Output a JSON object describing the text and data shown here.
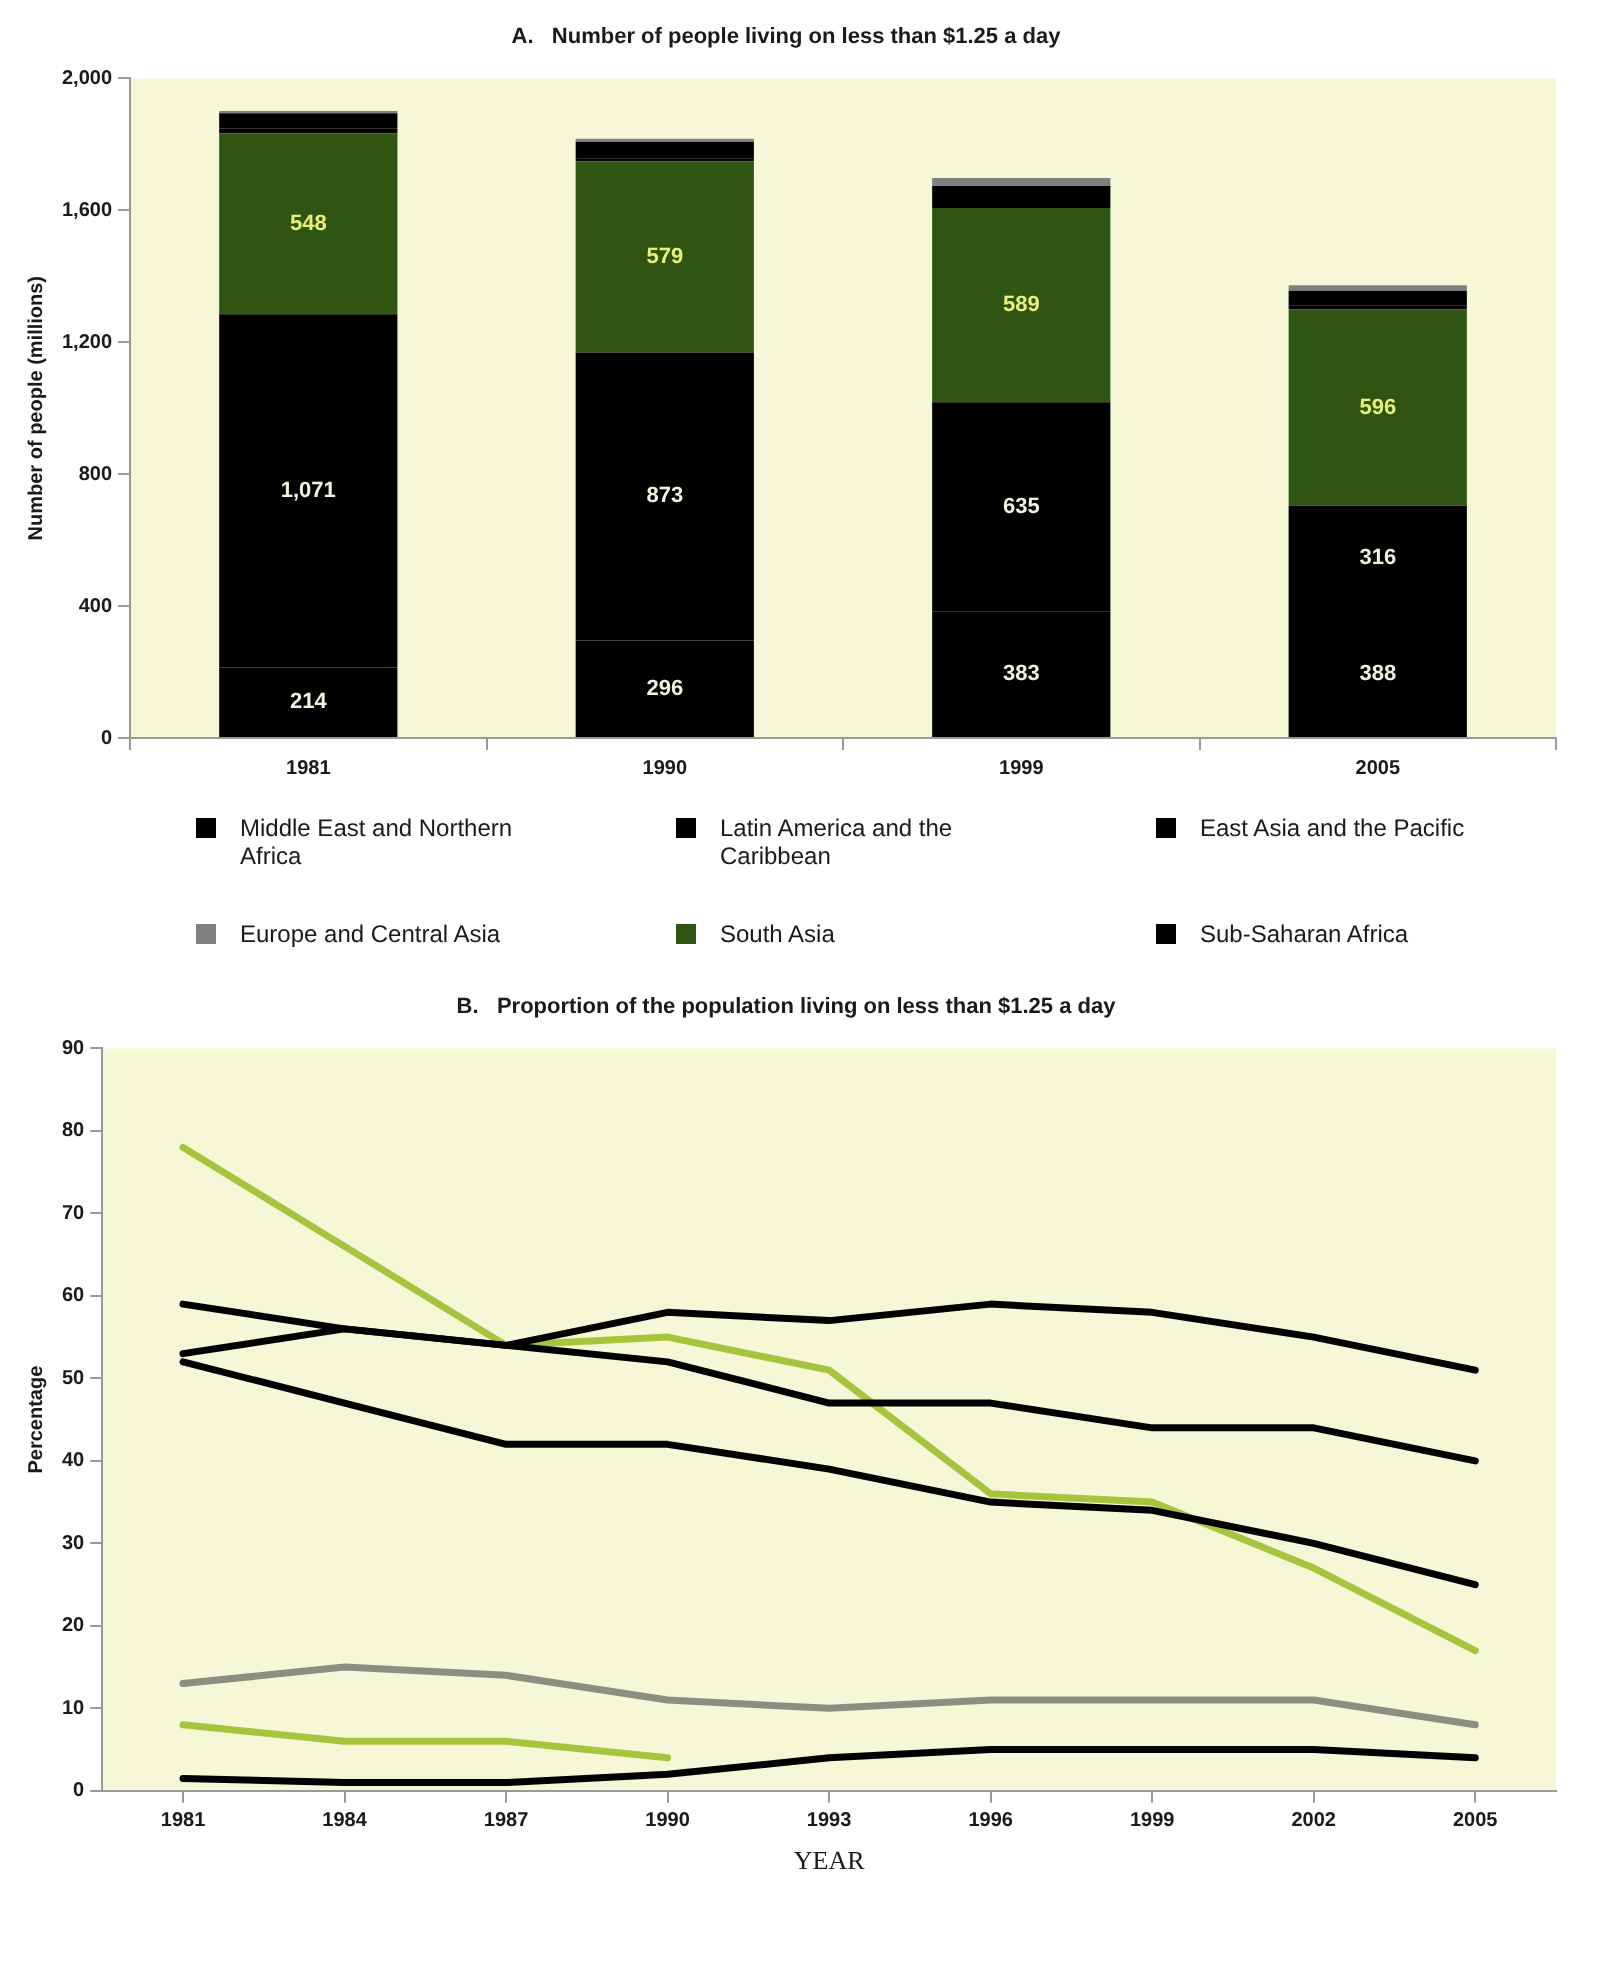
{
  "chart_data": [
    {
      "type": "bar",
      "stacked": true,
      "title": "A.   Number of people living on less than $1.25 a day",
      "ylabel": "Number of people (millions)",
      "categories": [
        "1981",
        "1990",
        "1999",
        "2005"
      ],
      "ylim": [
        0,
        2000
      ],
      "yticks": [
        0,
        {
          "value": 400,
          "label": "400"
        },
        {
          "value": 800,
          "label": "800"
        },
        {
          "value": 1200,
          "label": "1,200"
        },
        {
          "value": 1600,
          "label": "1,600"
        },
        {
          "value": 2000,
          "label": "2,000"
        }
      ],
      "legend": "bottom",
      "series": [
        {
          "name": "Sub-Saharan Africa",
          "color": "#000000",
          "values": [
            214,
            296,
            383,
            388
          ],
          "value_labels": [
            "214",
            "296",
            "383",
            "388"
          ]
        },
        {
          "name": "East Asia and the Pacific",
          "color": "#000000",
          "values": [
            1071,
            873,
            635,
            316
          ],
          "value_labels": [
            "1,071",
            "873",
            "635",
            "316"
          ]
        },
        {
          "name": "South Asia",
          "color": "#2f5512",
          "values": [
            548,
            579,
            589,
            596
          ],
          "value_labels": [
            "548",
            "579",
            "589",
            "596"
          ]
        },
        {
          "name": "Middle East and Northern Africa",
          "color": "#000000",
          "values": [
            14,
            10,
            12,
            11
          ]
        },
        {
          "name": "Latin America and the Caribbean",
          "color": "#000000",
          "values": [
            47,
            50,
            55,
            45
          ]
        },
        {
          "name": "Europe and Central Asia",
          "color": "#808080",
          "values": [
            7,
            9,
            24,
            17
          ]
        }
      ]
    },
    {
      "type": "line",
      "title": "B.   Proportion of the population living on less than $1.25 a day",
      "ylabel": "Percentage",
      "xlabel": "YEAR",
      "categories": [
        "1981",
        "1984",
        "1987",
        "1990",
        "1993",
        "1996",
        "1999",
        "2002",
        "2005"
      ],
      "ylim": [
        0,
        90
      ],
      "yticks": [
        0,
        10,
        20,
        30,
        40,
        50,
        60,
        70,
        80,
        90
      ],
      "marker": "none",
      "line_style": "solid",
      "series": [
        {
          "color": "#a6c43c",
          "values": [
            78,
            66,
            54,
            55,
            51,
            36,
            35,
            27,
            17
          ]
        },
        {
          "color": "#000000",
          "values": [
            59,
            56,
            54,
            52,
            47,
            47,
            44,
            44,
            40
          ]
        },
        {
          "color": "#000000",
          "values": [
            53,
            56,
            54,
            58,
            57,
            59,
            58,
            55,
            51
          ]
        },
        {
          "color": "#000000",
          "values": [
            52,
            47,
            42,
            42,
            39,
            35,
            34,
            30,
            25
          ]
        },
        {
          "color": "#8a8f80",
          "values": [
            13,
            15,
            14,
            11,
            10,
            11,
            11,
            11,
            8
          ]
        },
        {
          "color": "#a6c43c",
          "values": [
            8,
            6,
            6,
            4,
            null,
            null,
            null,
            null,
            null
          ]
        },
        {
          "color": "#000000",
          "values": [
            1.5,
            1,
            1,
            2,
            4,
            5,
            5,
            5,
            4
          ]
        }
      ]
    }
  ]
}
